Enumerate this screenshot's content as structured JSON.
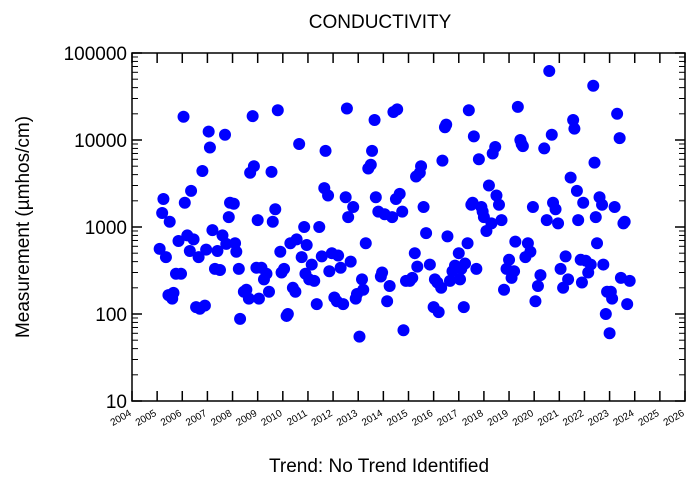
{
  "chart_data": {
    "type": "scatter",
    "title": "CONDUCTIVITY",
    "ylabel": "Measurement (µmhos/cm)",
    "xlabel": "Trend: No Trend Identified",
    "y_scale": "log",
    "ylim": [
      10,
      100000
    ],
    "xlim": [
      2004,
      2026
    ],
    "x_ticks": [
      "2004",
      "2005",
      "2006",
      "2007",
      "2008",
      "2009",
      "2010",
      "2011",
      "2012",
      "2013",
      "2014",
      "2015",
      "2016",
      "2017",
      "2018",
      "2019",
      "2020",
      "2021",
      "2022",
      "2023",
      "2024",
      "2025",
      "2026"
    ],
    "y_ticks": [
      "10",
      "100",
      "1000",
      "10000",
      "100000"
    ],
    "marker_color": "#0000ff",
    "grid": false,
    "series": [
      {
        "points": [
          [
            2005.1,
            560
          ],
          [
            2005.2,
            1450
          ],
          [
            2005.25,
            2100
          ],
          [
            2005.35,
            450
          ],
          [
            2005.45,
            165
          ],
          [
            2005.5,
            1150
          ],
          [
            2005.6,
            150
          ],
          [
            2005.65,
            175
          ],
          [
            2005.75,
            290
          ],
          [
            2005.85,
            690
          ],
          [
            2005.95,
            290
          ],
          [
            2006.05,
            18500
          ],
          [
            2006.1,
            1900
          ],
          [
            2006.2,
            800
          ],
          [
            2006.3,
            530
          ],
          [
            2006.35,
            2600
          ],
          [
            2006.45,
            720
          ],
          [
            2006.55,
            120
          ],
          [
            2006.65,
            450
          ],
          [
            2006.7,
            115
          ],
          [
            2006.8,
            4400
          ],
          [
            2006.9,
            125
          ],
          [
            2006.95,
            550
          ],
          [
            2007.05,
            12500
          ],
          [
            2007.1,
            8200
          ],
          [
            2007.2,
            920
          ],
          [
            2007.3,
            330
          ],
          [
            2007.4,
            530
          ],
          [
            2007.5,
            320
          ],
          [
            2007.6,
            800
          ],
          [
            2007.7,
            11500
          ],
          [
            2007.75,
            640
          ],
          [
            2007.85,
            1300
          ],
          [
            2007.9,
            1900
          ],
          [
            2008.05,
            1850
          ],
          [
            2008.1,
            650
          ],
          [
            2008.15,
            520
          ],
          [
            2008.25,
            330
          ],
          [
            2008.3,
            88
          ],
          [
            2008.45,
            180
          ],
          [
            2008.55,
            190
          ],
          [
            2008.65,
            150
          ],
          [
            2008.7,
            4200
          ],
          [
            2008.8,
            18800
          ],
          [
            2008.85,
            5000
          ],
          [
            2008.95,
            340
          ],
          [
            2009.0,
            1200
          ],
          [
            2009.05,
            150
          ],
          [
            2009.15,
            340
          ],
          [
            2009.25,
            250
          ],
          [
            2009.35,
            290
          ],
          [
            2009.45,
            180
          ],
          [
            2009.55,
            4300
          ],
          [
            2009.6,
            1150
          ],
          [
            2009.7,
            1600
          ],
          [
            2009.8,
            22000
          ],
          [
            2009.9,
            520
          ],
          [
            2009.95,
            300
          ],
          [
            2010.05,
            330
          ],
          [
            2010.15,
            95
          ],
          [
            2010.2,
            100
          ],
          [
            2010.3,
            650
          ],
          [
            2010.4,
            200
          ],
          [
            2010.5,
            180
          ],
          [
            2010.55,
            720
          ],
          [
            2010.65,
            9000
          ],
          [
            2010.75,
            450
          ],
          [
            2010.85,
            1000
          ],
          [
            2010.9,
            290
          ],
          [
            2010.95,
            620
          ],
          [
            2011.05,
            250
          ],
          [
            2011.15,
            370
          ],
          [
            2011.25,
            240
          ],
          [
            2011.35,
            130
          ],
          [
            2011.45,
            1000
          ],
          [
            2011.55,
            460
          ],
          [
            2011.65,
            2800
          ],
          [
            2011.7,
            7500
          ],
          [
            2011.8,
            2300
          ],
          [
            2011.85,
            310
          ],
          [
            2011.95,
            500
          ],
          [
            2012.05,
            155
          ],
          [
            2012.15,
            140
          ],
          [
            2012.2,
            470
          ],
          [
            2012.3,
            340
          ],
          [
            2012.4,
            130
          ],
          [
            2012.5,
            2200
          ],
          [
            2012.55,
            23000
          ],
          [
            2012.6,
            1300
          ],
          [
            2012.7,
            400
          ],
          [
            2012.8,
            1700
          ],
          [
            2012.9,
            150
          ],
          [
            2012.95,
            170
          ],
          [
            2013.05,
            55
          ],
          [
            2013.15,
            250
          ],
          [
            2013.2,
            190
          ],
          [
            2013.3,
            650
          ],
          [
            2013.4,
            4700
          ],
          [
            2013.5,
            5200
          ],
          [
            2013.55,
            7500
          ],
          [
            2013.65,
            17000
          ],
          [
            2013.7,
            2200
          ],
          [
            2013.8,
            1500
          ],
          [
            2013.9,
            270
          ],
          [
            2013.95,
            300
          ],
          [
            2014.05,
            1400
          ],
          [
            2014.15,
            140
          ],
          [
            2014.25,
            210
          ],
          [
            2014.35,
            1300
          ],
          [
            2014.4,
            21000
          ],
          [
            2014.5,
            2100
          ],
          [
            2014.55,
            22500
          ],
          [
            2014.65,
            2400
          ],
          [
            2014.75,
            1500
          ],
          [
            2014.8,
            65
          ],
          [
            2014.9,
            240
          ],
          [
            2015.05,
            240
          ],
          [
            2015.15,
            260
          ],
          [
            2015.25,
            500
          ],
          [
            2015.3,
            3800
          ],
          [
            2015.35,
            350
          ],
          [
            2015.45,
            4200
          ],
          [
            2015.5,
            5000
          ],
          [
            2015.6,
            1700
          ],
          [
            2015.7,
            850
          ],
          [
            2015.85,
            370
          ],
          [
            2016.0,
            120
          ],
          [
            2016.05,
            250
          ],
          [
            2016.15,
            230
          ],
          [
            2016.2,
            105
          ],
          [
            2016.3,
            200
          ],
          [
            2016.35,
            5800
          ],
          [
            2016.45,
            14000
          ],
          [
            2016.5,
            15000
          ],
          [
            2016.55,
            780
          ],
          [
            2016.65,
            240
          ],
          [
            2016.75,
            310
          ],
          [
            2016.85,
            360
          ],
          [
            2017.0,
            500
          ],
          [
            2017.05,
            250
          ],
          [
            2017.1,
            330
          ],
          [
            2017.2,
            120
          ],
          [
            2017.25,
            380
          ],
          [
            2017.35,
            650
          ],
          [
            2017.4,
            22000
          ],
          [
            2017.5,
            1800
          ],
          [
            2017.55,
            1900
          ],
          [
            2017.6,
            11000
          ],
          [
            2017.7,
            330
          ],
          [
            2017.8,
            6000
          ],
          [
            2017.9,
            1700
          ],
          [
            2017.95,
            1500
          ],
          [
            2018.0,
            1300
          ],
          [
            2018.1,
            900
          ],
          [
            2018.2,
            3000
          ],
          [
            2018.3,
            1100
          ],
          [
            2018.35,
            7000
          ],
          [
            2018.45,
            8300
          ],
          [
            2018.5,
            2300
          ],
          [
            2018.6,
            1800
          ],
          [
            2018.7,
            1200
          ],
          [
            2018.8,
            190
          ],
          [
            2018.9,
            330
          ],
          [
            2019.0,
            420
          ],
          [
            2019.1,
            260
          ],
          [
            2019.2,
            310
          ],
          [
            2019.25,
            680
          ],
          [
            2019.35,
            24000
          ],
          [
            2019.45,
            10000
          ],
          [
            2019.5,
            9000
          ],
          [
            2019.55,
            8500
          ],
          [
            2019.65,
            450
          ],
          [
            2019.75,
            650
          ],
          [
            2019.85,
            520
          ],
          [
            2019.95,
            1700
          ],
          [
            2020.05,
            140
          ],
          [
            2020.15,
            210
          ],
          [
            2020.25,
            280
          ],
          [
            2020.4,
            8000
          ],
          [
            2020.5,
            1200
          ],
          [
            2020.6,
            62000
          ],
          [
            2020.7,
            11500
          ],
          [
            2020.75,
            1900
          ],
          [
            2020.85,
            1600
          ],
          [
            2020.95,
            1100
          ],
          [
            2021.05,
            330
          ],
          [
            2021.15,
            200
          ],
          [
            2021.25,
            460
          ],
          [
            2021.35,
            250
          ],
          [
            2021.45,
            3700
          ],
          [
            2021.55,
            17000
          ],
          [
            2021.6,
            13500
          ],
          [
            2021.7,
            2600
          ],
          [
            2021.75,
            1200
          ],
          [
            2021.85,
            420
          ],
          [
            2021.9,
            230
          ],
          [
            2021.95,
            1900
          ],
          [
            2022.05,
            410
          ],
          [
            2022.15,
            300
          ],
          [
            2022.25,
            370
          ],
          [
            2022.35,
            42000
          ],
          [
            2022.4,
            5500
          ],
          [
            2022.45,
            1300
          ],
          [
            2022.5,
            650
          ],
          [
            2022.6,
            2200
          ],
          [
            2022.7,
            1800
          ],
          [
            2022.75,
            370
          ],
          [
            2022.85,
            100
          ],
          [
            2022.9,
            180
          ],
          [
            2023.0,
            60
          ],
          [
            2023.05,
            180
          ],
          [
            2023.1,
            150
          ],
          [
            2023.2,
            1700
          ],
          [
            2023.3,
            20000
          ],
          [
            2023.4,
            10500
          ],
          [
            2023.45,
            260
          ],
          [
            2023.55,
            1100
          ],
          [
            2023.6,
            1150
          ],
          [
            2023.7,
            130
          ],
          [
            2023.8,
            240
          ]
        ]
      }
    ]
  }
}
